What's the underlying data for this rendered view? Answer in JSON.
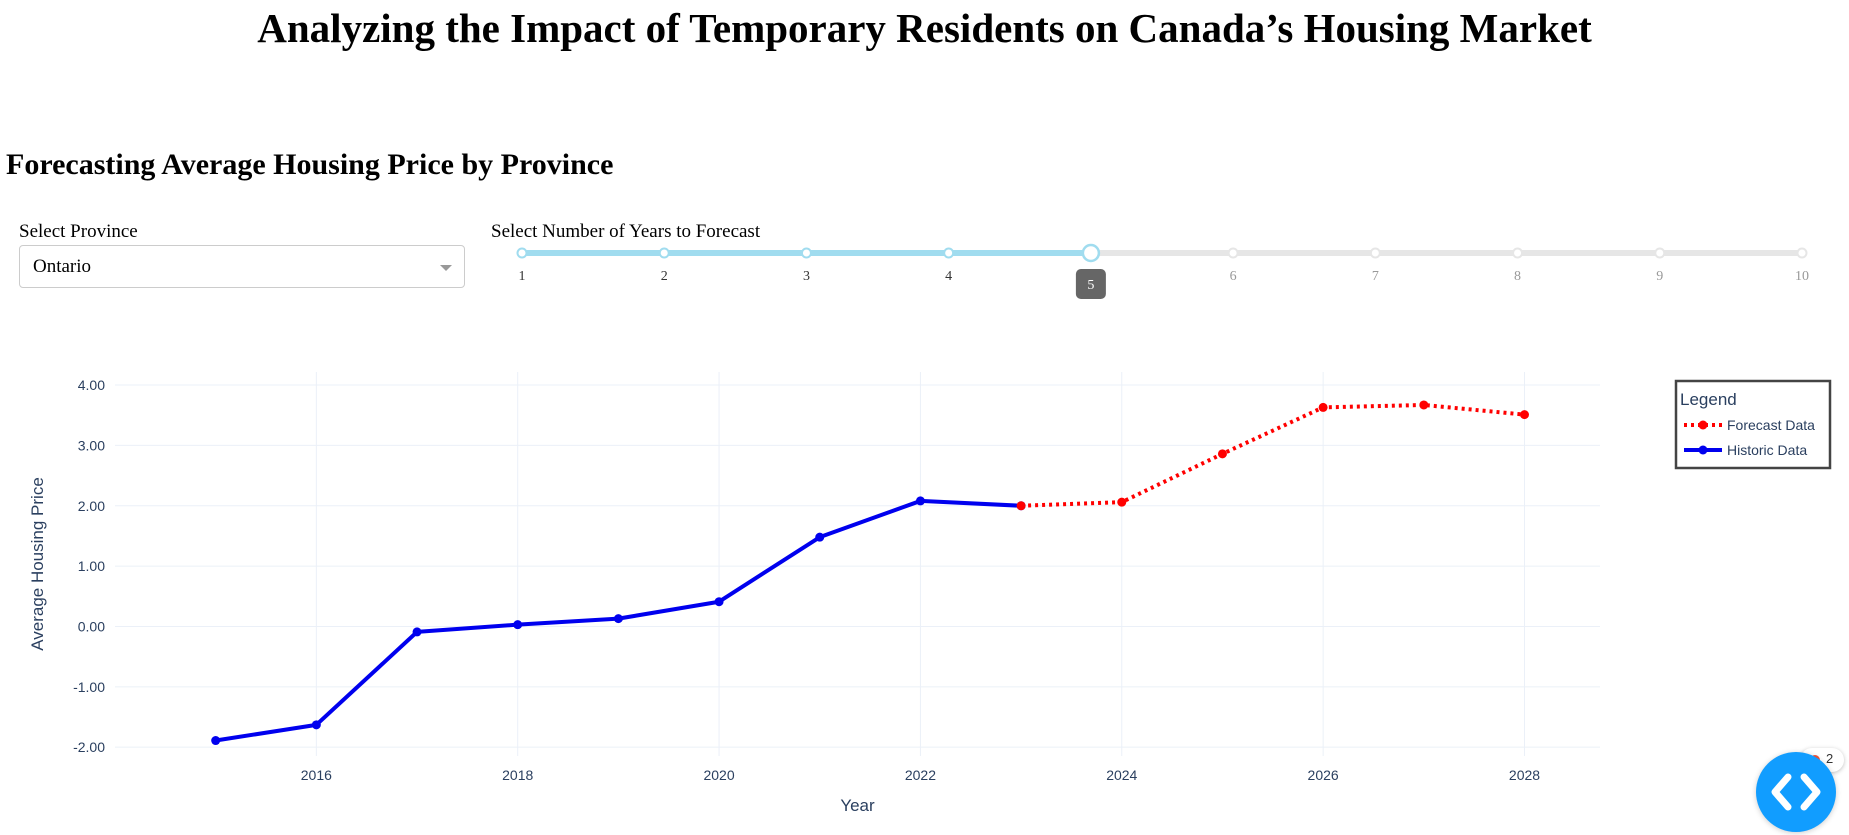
{
  "page": {
    "title": "Analyzing the Impact of Temporary Residents on Canada’s Housing Market",
    "section_title": "Forecasting Average Housing Price by Province"
  },
  "controls": {
    "province_label": "Select Province",
    "province_value": "Ontario",
    "years_label": "Select Number of Years to Forecast",
    "slider_marks": [
      "1",
      "2",
      "3",
      "4",
      "5",
      "6",
      "7",
      "8",
      "9",
      "10"
    ],
    "slider_value": 5,
    "slider_tooltip": "5",
    "accent_color": "#a0dcef"
  },
  "chart_data": {
    "type": "line",
    "xlabel": "Year",
    "ylabel": "Average Housing Price",
    "x_ticks": [
      "2016",
      "2018",
      "2020",
      "2022",
      "2024",
      "2026",
      "2028"
    ],
    "y_ticks": [
      "4.00",
      "3.00",
      "2.00",
      "1.00",
      "0.00",
      "-1.00",
      "-2.00"
    ],
    "xlim": [
      2014.0,
      2028.75
    ],
    "ylim": [
      -2.08,
      4.15
    ],
    "grid": true,
    "legend": {
      "title": "Legend",
      "placement": "top-right"
    },
    "series": [
      {
        "name": "Forecast Data",
        "color": "#ff0000",
        "style": "dotted",
        "x": [
          2023,
          2024,
          2025,
          2026,
          2027,
          2028
        ],
        "y": [
          2.0,
          2.06,
          2.86,
          3.63,
          3.67,
          3.51
        ]
      },
      {
        "name": "Historic Data",
        "color": "#0000ee",
        "style": "solid",
        "x": [
          2015,
          2016,
          2017,
          2018,
          2019,
          2020,
          2021,
          2022,
          2023
        ],
        "y": [
          -1.89,
          -1.63,
          -0.09,
          0.03,
          0.13,
          0.41,
          1.48,
          2.08,
          2.0
        ]
      }
    ]
  },
  "debug": {
    "error_count": "2",
    "icon": "code-brackets-icon"
  }
}
